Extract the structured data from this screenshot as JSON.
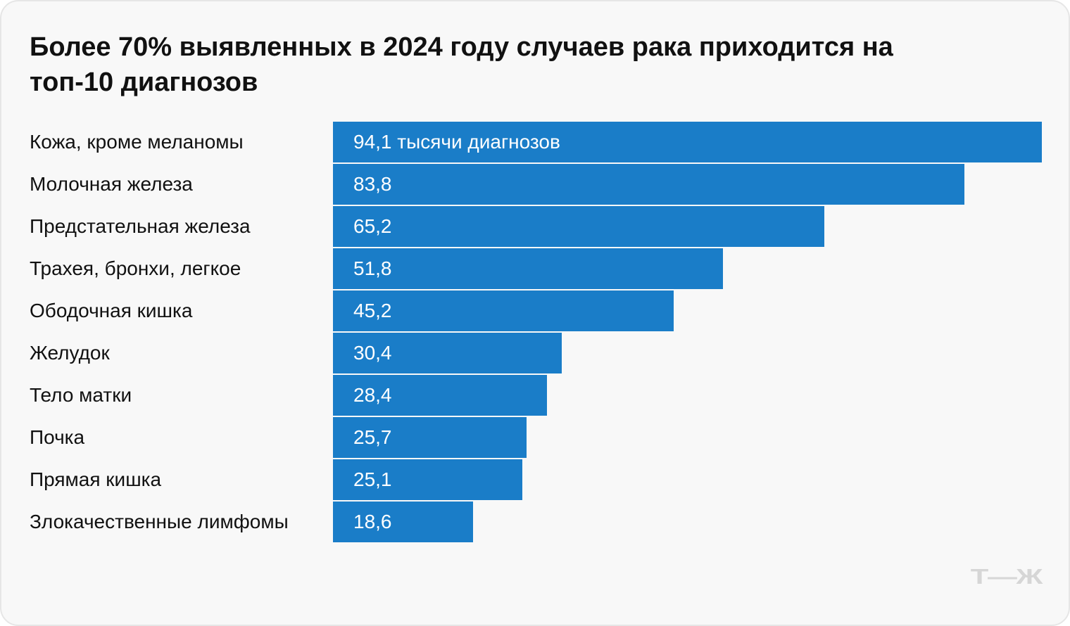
{
  "chart_data": {
    "type": "bar",
    "orientation": "horizontal",
    "title": "Более 70% выявленных в 2024 году случаев рака приходится на топ-10 диагнозов",
    "categories": [
      "Кожа, кроме меланомы",
      "Молочная железа",
      "Предстательная железа",
      "Трахея, бронхи, легкое",
      "Ободочная кишка",
      "Желудок",
      "Тело матки",
      "Почка",
      "Прямая кишка",
      "Злокачественные лимфомы"
    ],
    "values": [
      94.1,
      83.8,
      65.2,
      51.8,
      45.2,
      30.4,
      28.4,
      25.7,
      25.1,
      18.6
    ],
    "data_labels": [
      "94,1 тысячи диагнозов",
      "83,8",
      "65,2",
      "51,8",
      "45,2",
      "30,4",
      "28,4",
      "25,7",
      "25,1",
      "18,6"
    ],
    "xlim": [
      0,
      94.1
    ],
    "grid": false,
    "bar_color": "#1a7dc8"
  },
  "logo": "Т—Ж"
}
